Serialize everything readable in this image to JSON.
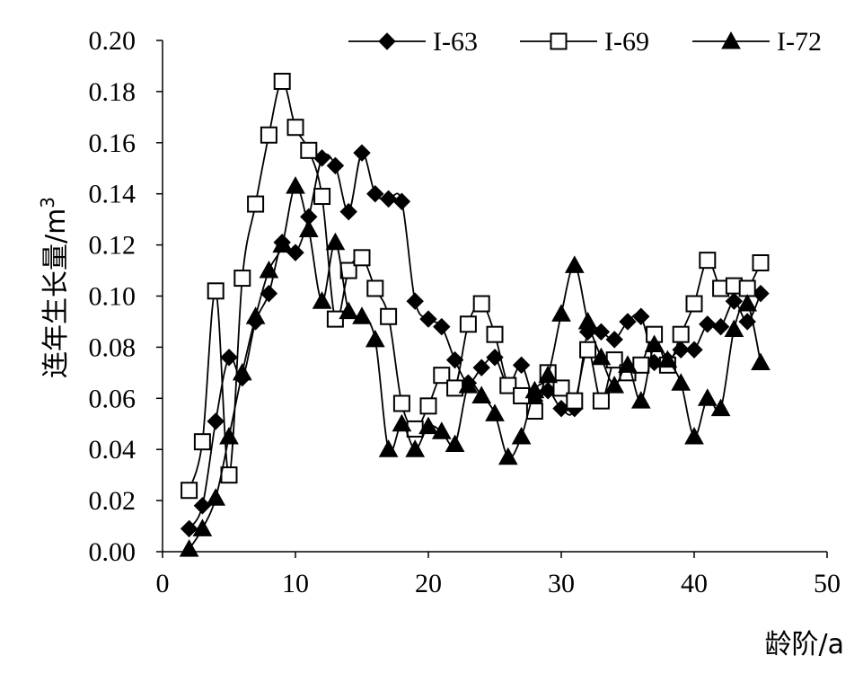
{
  "chart_data": {
    "type": "line",
    "xlabel": "龄阶/a",
    "ylabel": "连年生长量/m",
    "ylabel_sup": "3",
    "xlim": [
      0,
      50
    ],
    "ylim": [
      0,
      0.2
    ],
    "xticks": [
      "0",
      "10",
      "20",
      "30",
      "40",
      "50"
    ],
    "yticks": [
      "0.00",
      "0.02",
      "0.04",
      "0.06",
      "0.08",
      "0.10",
      "0.12",
      "0.14",
      "0.16",
      "0.18",
      "0.20"
    ],
    "grid": false,
    "legend_position": "top-right",
    "series": [
      {
        "name": "I-63",
        "marker": "diamond-filled",
        "x": [
          2,
          3,
          4,
          5,
          6,
          7,
          8,
          9,
          10,
          11,
          12,
          13,
          14,
          15,
          16,
          17,
          18,
          19,
          20,
          21,
          22,
          23,
          24,
          25,
          26,
          27,
          28,
          29,
          30,
          31,
          32,
          33,
          34,
          35,
          36,
          37,
          38,
          39,
          40,
          41,
          42,
          43,
          44,
          45
        ],
        "y": [
          0.009,
          0.018,
          0.051,
          0.076,
          0.068,
          0.09,
          0.101,
          0.121,
          0.117,
          0.131,
          0.154,
          0.151,
          0.133,
          0.156,
          0.14,
          0.138,
          0.137,
          0.098,
          0.091,
          0.088,
          0.075,
          0.066,
          0.072,
          0.076,
          0.065,
          0.073,
          0.059,
          0.063,
          0.056,
          0.056,
          0.086,
          0.086,
          0.083,
          0.09,
          0.092,
          0.074,
          0.075,
          0.079,
          0.079,
          0.089,
          0.088,
          0.098,
          0.09,
          0.101
        ]
      },
      {
        "name": "I-69",
        "marker": "square-open",
        "x": [
          2,
          3,
          4,
          5,
          6,
          7,
          8,
          9,
          10,
          11,
          12,
          13,
          14,
          15,
          16,
          17,
          18,
          19,
          20,
          21,
          22,
          23,
          24,
          25,
          26,
          27,
          28,
          29,
          30,
          31,
          32,
          33,
          34,
          35,
          36,
          37,
          38,
          39,
          40,
          41,
          42,
          43,
          44,
          45
        ],
        "y": [
          0.024,
          0.043,
          0.102,
          0.03,
          0.107,
          0.136,
          0.163,
          0.184,
          0.166,
          0.157,
          0.139,
          0.091,
          0.11,
          0.115,
          0.103,
          0.092,
          0.058,
          0.048,
          0.057,
          0.069,
          0.064,
          0.089,
          0.097,
          0.085,
          0.065,
          0.061,
          0.055,
          0.07,
          0.064,
          0.059,
          0.079,
          0.059,
          0.075,
          0.07,
          0.073,
          0.085,
          0.073,
          0.085,
          0.097,
          0.114,
          0.103,
          0.104,
          0.103,
          0.113
        ]
      },
      {
        "name": "I-72",
        "marker": "triangle-filled",
        "x": [
          2,
          3,
          4,
          5,
          6,
          7,
          8,
          9,
          10,
          11,
          12,
          13,
          14,
          15,
          16,
          17,
          18,
          19,
          20,
          21,
          22,
          23,
          24,
          25,
          26,
          27,
          28,
          29,
          30,
          31,
          32,
          33,
          34,
          35,
          36,
          37,
          38,
          39,
          40,
          41,
          42,
          43,
          44,
          45
        ],
        "y": [
          0.001,
          0.009,
          0.021,
          0.045,
          0.07,
          0.092,
          0.11,
          0.12,
          0.143,
          0.126,
          0.098,
          0.121,
          0.094,
          0.092,
          0.083,
          0.04,
          0.05,
          0.04,
          0.049,
          0.047,
          0.042,
          0.065,
          0.061,
          0.054,
          0.037,
          0.045,
          0.063,
          0.069,
          0.093,
          0.112,
          0.09,
          0.076,
          0.065,
          0.073,
          0.059,
          0.081,
          0.075,
          0.066,
          0.045,
          0.06,
          0.056,
          0.087,
          0.097,
          0.074
        ]
      }
    ]
  }
}
